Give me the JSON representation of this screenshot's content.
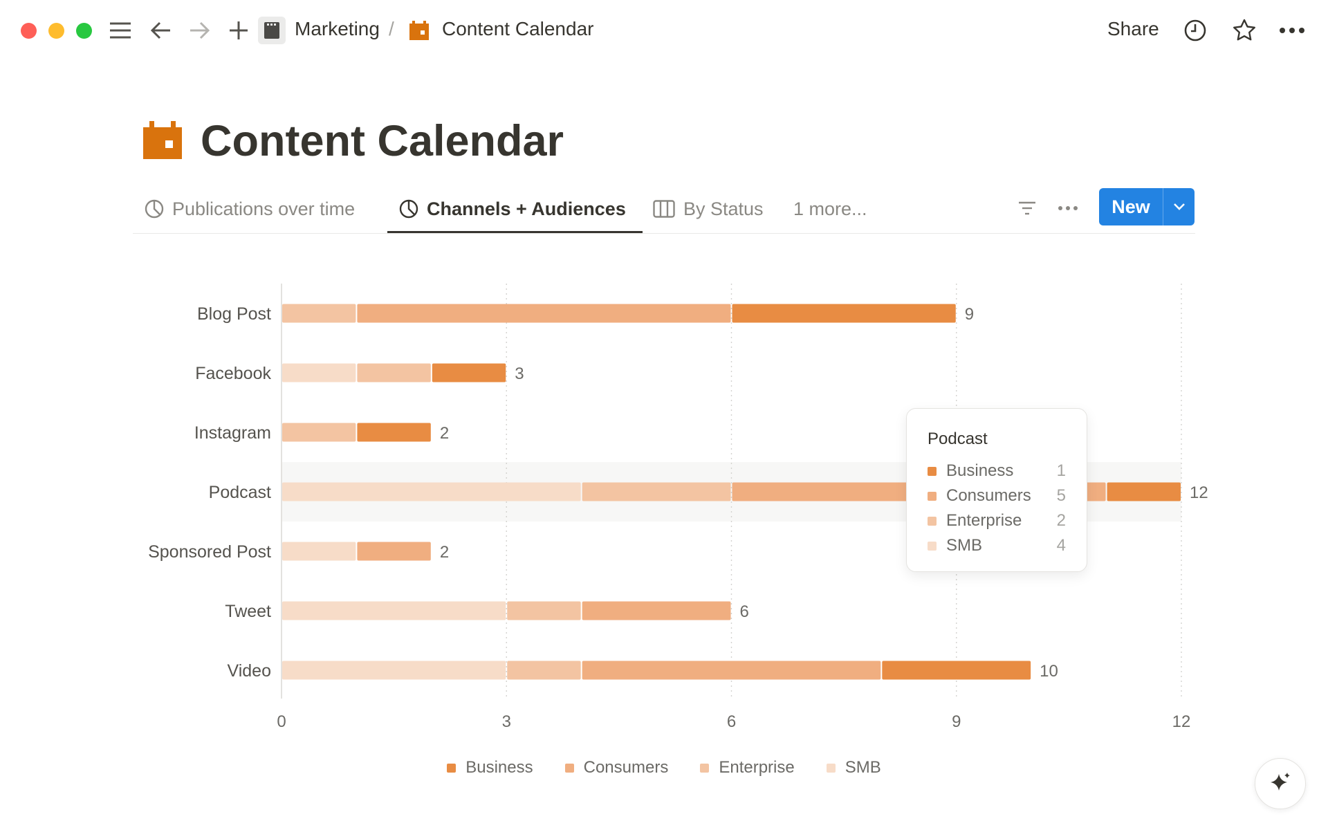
{
  "topbar": {
    "breadcrumb": [
      {
        "label": "Marketing",
        "icon": "clapperboard-icon"
      },
      {
        "label": "Content Calendar",
        "icon": "calendar-icon"
      }
    ],
    "separator": "/",
    "share_label": "Share"
  },
  "page": {
    "title": "Content Calendar",
    "icon": "calendar-icon"
  },
  "tabs": [
    {
      "label": "Publications over time",
      "icon": "pie-chart-icon"
    },
    {
      "label": "Channels + Audiences",
      "icon": "pie-chart-icon",
      "active": true
    },
    {
      "label": "By Status",
      "icon": "board-icon"
    },
    {
      "label": "1 more..."
    }
  ],
  "toolbar": {
    "new_label": "New"
  },
  "colors": {
    "accent": "#2383e2",
    "Business": "#e88c43",
    "Consumers": "#f0ae80",
    "Enterprise": "#f3c4a2",
    "SMB": "#f7dcc8"
  },
  "chart_data": {
    "type": "bar",
    "orientation": "horizontal",
    "stacked": true,
    "categories": [
      "Blog Post",
      "Facebook",
      "Instagram",
      "Podcast",
      "Sponsored Post",
      "Tweet",
      "Video"
    ],
    "series": [
      {
        "name": "SMB",
        "values": [
          0,
          1,
          0,
          4,
          1,
          3,
          3
        ]
      },
      {
        "name": "Enterprise",
        "values": [
          1,
          1,
          1,
          2,
          0,
          1,
          1
        ]
      },
      {
        "name": "Consumers",
        "values": [
          5,
          0,
          0,
          5,
          1,
          2,
          4
        ]
      },
      {
        "name": "Business",
        "values": [
          3,
          1,
          1,
          1,
          0,
          0,
          2
        ]
      }
    ],
    "totals": [
      "9",
      "3",
      "2",
      "12",
      "2",
      "6",
      "10"
    ],
    "xlim": [
      0,
      12
    ],
    "xticks": [
      "0",
      "3",
      "6",
      "9",
      "12"
    ],
    "grid": true,
    "legend": {
      "placement": "bottom",
      "entries": [
        "Business",
        "Consumers",
        "Enterprise",
        "SMB"
      ]
    },
    "highlighted": "Podcast"
  },
  "tooltip": {
    "title": "Podcast",
    "rows": [
      {
        "label": "Business",
        "value": "1"
      },
      {
        "label": "Consumers",
        "value": "5"
      },
      {
        "label": "Enterprise",
        "value": "2"
      },
      {
        "label": "SMB",
        "value": "4"
      }
    ]
  }
}
